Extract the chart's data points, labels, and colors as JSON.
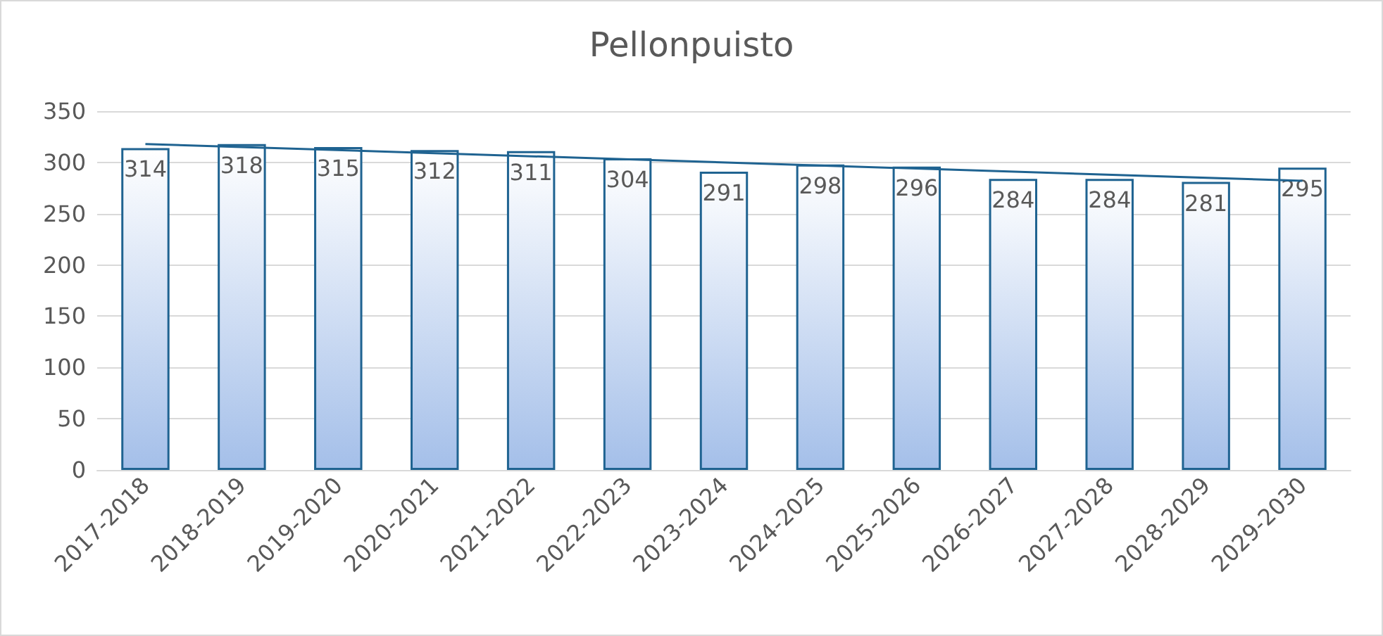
{
  "chart_data": {
    "type": "bar",
    "title": "Pellonpuisto",
    "categories": [
      "2017-2018",
      "2018-2019",
      "2019-2020",
      "2020-2021",
      "2021-2022",
      "2022-2023",
      "2023-2024",
      "2024-2025",
      "2025-2026",
      "2026-2027",
      "2027-2028",
      "2028-2029",
      "2029-2030"
    ],
    "series": [
      {
        "color": "#1f6391",
        "values": [
          314,
          318,
          315,
          312,
          311,
          304,
          291,
          298,
          296,
          284,
          284,
          281,
          295
        ],
        "value_labels": [
          "314",
          "318",
          "315",
          "312",
          "311",
          "304",
          "291",
          "298",
          "296",
          "284",
          "284",
          "281",
          "295"
        ]
      },
      {
        "type": "line",
        "color": "#1f6391",
        "values": [
          318,
          null,
          null,
          null,
          null,
          null,
          null,
          null,
          null,
          null,
          null,
          null,
          282
        ]
      }
    ],
    "ylim": [
      0,
      350
    ],
    "yticks": [
      0,
      50,
      100,
      150,
      200,
      250,
      300,
      350
    ],
    "grid": "y",
    "marker": "none"
  }
}
